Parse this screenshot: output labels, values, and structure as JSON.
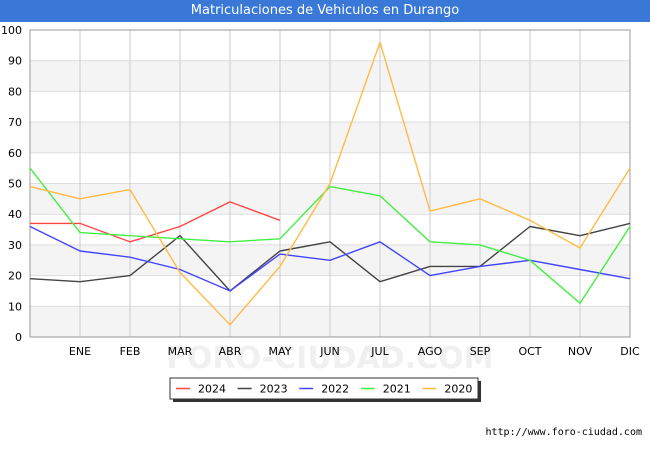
{
  "title": "Matriculaciones de Vehiculos en Durango",
  "watermark": "FORO-CIUDAD.COM",
  "footer": "http://www.foro-ciudad.com",
  "chart_data": {
    "type": "line",
    "title": "Matriculaciones de Vehiculos en Durango",
    "categories": [
      "",
      "ENE",
      "FEB",
      "MAR",
      "ABR",
      "MAY",
      "JUN",
      "JUL",
      "AGO",
      "SEP",
      "OCT",
      "NOV",
      "DIC"
    ],
    "ylim": [
      0,
      100
    ],
    "yticks": [
      0,
      10,
      20,
      30,
      40,
      50,
      60,
      70,
      80,
      90,
      100
    ],
    "grid": true,
    "legend_position": "bottom",
    "series": [
      {
        "name": "2024",
        "color": "#ff4444",
        "values": [
          37,
          37,
          31,
          36,
          44,
          38,
          null,
          null,
          null,
          null,
          null,
          null,
          null
        ]
      },
      {
        "name": "2023",
        "color": "#444444",
        "values": [
          19,
          18,
          20,
          33,
          15,
          28,
          31,
          18,
          23,
          23,
          36,
          33,
          37
        ]
      },
      {
        "name": "2022",
        "color": "#4444ff",
        "values": [
          36,
          28,
          26,
          22,
          15,
          27,
          25,
          31,
          20,
          23,
          25,
          22,
          19
        ]
      },
      {
        "name": "2021",
        "color": "#44ee44",
        "values": [
          55,
          34,
          33,
          32,
          31,
          32,
          49,
          46,
          31,
          30,
          25,
          11,
          36
        ]
      },
      {
        "name": "2020",
        "color": "#ffbb44",
        "values": [
          49,
          45,
          48,
          21,
          4,
          23,
          50,
          96,
          41,
          45,
          38,
          29,
          55
        ]
      }
    ]
  }
}
